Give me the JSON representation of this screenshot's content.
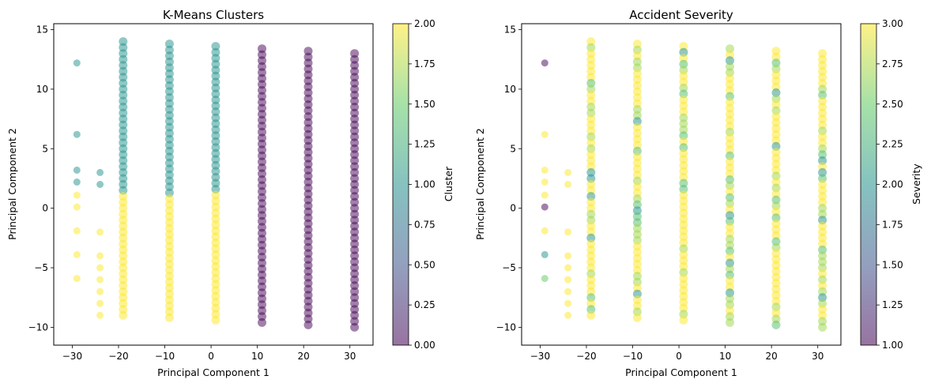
{
  "chart_data": [
    {
      "type": "scatter",
      "title": "K-Means Clusters",
      "xlabel": "Principal Component 1",
      "ylabel": "Principal Component 2",
      "xlim": [
        -34,
        35
      ],
      "ylim": [
        -11.5,
        15.5
      ],
      "xticks": [
        -30,
        -20,
        -10,
        0,
        10,
        20,
        30
      ],
      "yticks": [
        -10,
        -5,
        0,
        5,
        10,
        15
      ],
      "grid": false,
      "colorbar": {
        "label": "Cluster",
        "range": [
          0,
          2
        ],
        "colormap": [
          "#440154",
          "#3b528b",
          "#21918c",
          "#5ec962",
          "#fde725"
        ],
        "ticks": [
          "0.00",
          "0.25",
          "0.50",
          "0.75",
          "1.00",
          "1.25",
          "1.50",
          "1.75",
          "2.00"
        ]
      },
      "columns": [
        {
          "x": -19,
          "y_min": -9.1,
          "y_max": 14.0,
          "split": 1.0
        },
        {
          "x": -9,
          "y_min": -9.3,
          "y_max": 13.8,
          "split": 1.0
        },
        {
          "x": 1,
          "y_min": -9.5,
          "y_max": 13.6,
          "split": 1.0
        },
        {
          "x": 11,
          "y_min": -9.7,
          "y_max": 13.4,
          "split": null
        },
        {
          "x": 21,
          "y_min": -9.9,
          "y_max": 13.2,
          "split": null
        },
        {
          "x": 31,
          "y_min": -10.1,
          "y_max": 13.0,
          "split": null
        }
      ],
      "points": [
        {
          "x": -29,
          "y": 12.2,
          "c": 1
        },
        {
          "x": -29,
          "y": 6.2,
          "c": 1
        },
        {
          "x": -29,
          "y": 3.2,
          "c": 1
        },
        {
          "x": -29,
          "y": 2.2,
          "c": 1
        },
        {
          "x": -29,
          "y": 1.1,
          "c": 2
        },
        {
          "x": -29,
          "y": 0.1,
          "c": 2
        },
        {
          "x": -29,
          "y": -1.9,
          "c": 2
        },
        {
          "x": -29,
          "y": -3.9,
          "c": 2
        },
        {
          "x": -29,
          "y": -5.9,
          "c": 2
        },
        {
          "x": -24,
          "y": 3.0,
          "c": 1
        },
        {
          "x": -24,
          "y": 2.0,
          "c": 1
        },
        {
          "x": -24,
          "y": -2.0,
          "c": 2
        },
        {
          "x": -24,
          "y": -4.0,
          "c": 2
        },
        {
          "x": -24,
          "y": -5.0,
          "c": 2
        },
        {
          "x": -24,
          "y": -6.0,
          "c": 2
        },
        {
          "x": -24,
          "y": -7.0,
          "c": 2
        },
        {
          "x": -24,
          "y": -8.0,
          "c": 2
        },
        {
          "x": -24,
          "y": -9.0,
          "c": 2
        }
      ]
    },
    {
      "type": "scatter",
      "title": "Accident Severity",
      "xlabel": "Principal Component 1",
      "ylabel": "Principal Component 2",
      "xlim": [
        -34,
        35
      ],
      "ylim": [
        -11.5,
        15.5
      ],
      "xticks": [
        -30,
        -20,
        -10,
        0,
        10,
        20,
        30
      ],
      "yticks": [
        -10,
        -5,
        0,
        5,
        10,
        15
      ],
      "grid": false,
      "colorbar": {
        "label": "Severity",
        "range": [
          1,
          3
        ],
        "colormap": [
          "#440154",
          "#3b528b",
          "#21918c",
          "#5ec962",
          "#fde725"
        ],
        "ticks": [
          "1.00",
          "1.25",
          "1.50",
          "1.75",
          "2.00",
          "2.25",
          "2.50",
          "2.75",
          "3.00"
        ]
      },
      "columns": [
        {
          "x": -19,
          "y_min": -9.1,
          "y_max": 14.0
        },
        {
          "x": -9,
          "y_min": -9.3,
          "y_max": 13.8
        },
        {
          "x": 1,
          "y_min": -9.5,
          "y_max": 13.6
        },
        {
          "x": 11,
          "y_min": -9.7,
          "y_max": 13.4
        },
        {
          "x": 21,
          "y_min": -9.9,
          "y_max": 13.2
        },
        {
          "x": 31,
          "y_min": -10.1,
          "y_max": 13.0
        }
      ],
      "points": [
        {
          "x": -29,
          "y": 12.2,
          "c": 1
        },
        {
          "x": -29,
          "y": 6.2,
          "c": 3
        },
        {
          "x": -29,
          "y": 3.2,
          "c": 3
        },
        {
          "x": -29,
          "y": 2.2,
          "c": 3
        },
        {
          "x": -29,
          "y": 1.1,
          "c": 3
        },
        {
          "x": -29,
          "y": 0.1,
          "c": 1
        },
        {
          "x": -29,
          "y": -1.9,
          "c": 3
        },
        {
          "x": -29,
          "y": -3.9,
          "c": 2
        },
        {
          "x": -29,
          "y": -5.9,
          "c": 2.5
        },
        {
          "x": -24,
          "y": 3.0,
          "c": 3
        },
        {
          "x": -24,
          "y": 2.0,
          "c": 3
        },
        {
          "x": -24,
          "y": -2.0,
          "c": 3
        },
        {
          "x": -24,
          "y": -4.0,
          "c": 3
        },
        {
          "x": -24,
          "y": -5.0,
          "c": 3
        },
        {
          "x": -24,
          "y": -6.0,
          "c": 3
        },
        {
          "x": -24,
          "y": -7.0,
          "c": 3
        },
        {
          "x": -24,
          "y": -8.0,
          "c": 3
        },
        {
          "x": -24,
          "y": -9.0,
          "c": 3
        }
      ]
    }
  ]
}
